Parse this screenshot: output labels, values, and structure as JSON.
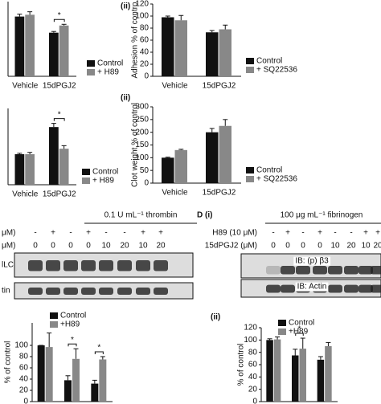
{
  "chart_data": [
    {
      "type": "bar",
      "categories": [
        "Vehicle",
        "15dPGJ2"
      ],
      "ylim": [
        0,
        125
      ],
      "yticks": [],
      "series": [
        {
          "name": "Control",
          "color": "#111111",
          "values": [
            100,
            73
          ],
          "errors": [
            4,
            2
          ]
        },
        {
          "name": "+ H89",
          "color": "#888888",
          "values": [
            103,
            85
          ],
          "errors": [
            5,
            2
          ]
        }
      ],
      "annotations": [
        "*"
      ]
    },
    {
      "type": "bar",
      "panel_label": "(ii)",
      "y_label": "Adhesion % of contro",
      "categories": [
        "Vehicle",
        "15dPGJ2"
      ],
      "ylim": [
        0,
        120
      ],
      "yticks": [
        0,
        20,
        40,
        60,
        80,
        100,
        120
      ],
      "series": [
        {
          "name": "Control",
          "color": "#111111",
          "values": [
            98,
            73
          ],
          "errors": [
            2,
            3
          ]
        },
        {
          "name": "+ SQ22536",
          "color": "#888888",
          "values": [
            93,
            78
          ],
          "errors": [
            8,
            7
          ]
        }
      ],
      "annotations": []
    },
    {
      "type": "bar",
      "categories": [
        "Vehicle",
        "15dPGJ2"
      ],
      "ylim": [
        0,
        250
      ],
      "yticks": [],
      "series": [
        {
          "name": "Control",
          "color": "#111111",
          "values": [
            100,
            189
          ],
          "errors": [
            3,
            12
          ]
        },
        {
          "name": "+ H89",
          "color": "#888888",
          "values": [
            100,
            118
          ],
          "errors": [
            6,
            10
          ]
        }
      ],
      "annotations": [
        "*"
      ]
    },
    {
      "type": "bar",
      "panel_label": "(ii)",
      "y_label": "Clot weight % of control",
      "categories": [
        "Vehicle",
        "15dPGJ2"
      ],
      "ylim": [
        0,
        300
      ],
      "yticks": [
        0,
        50,
        100,
        150,
        200,
        250,
        300
      ],
      "series": [
        {
          "name": "Control",
          "color": "#111111",
          "values": [
            100,
            200
          ],
          "errors": [
            2,
            15
          ]
        },
        {
          "name": "+ SQ22536",
          "color": "#888888",
          "values": [
            130,
            225
          ],
          "errors": [
            3,
            25
          ]
        }
      ],
      "annotations": []
    },
    {
      "type": "bar",
      "y_label": "% of control",
      "categories": [
        null,
        null,
        null
      ],
      "ylim": [
        0,
        140
      ],
      "yticks": [
        0,
        20,
        40,
        60,
        80,
        100
      ],
      "series": [
        {
          "name": "Control",
          "color": "#111111",
          "values": [
            100,
            38,
            32
          ],
          "errors": [
            0,
            8,
            6
          ]
        },
        {
          "name": "+H89",
          "color": "#888888",
          "values": [
            97,
            76,
            75
          ],
          "errors": [
            25,
            18,
            5
          ]
        }
      ],
      "annotations": [
        "*",
        "*"
      ]
    },
    {
      "type": "bar",
      "panel_label": "(ii)",
      "y_label": "% of control",
      "categories": [
        null,
        null,
        null
      ],
      "ylim": [
        0,
        120
      ],
      "yticks": [
        0,
        20,
        40,
        60,
        80,
        100,
        120
      ],
      "series": [
        {
          "name": "Control",
          "color": "#111111",
          "values": [
            100,
            75,
            68
          ],
          "errors": [
            2,
            10,
            5
          ]
        },
        {
          "name": "+H89",
          "color": "#888888",
          "values": [
            101,
            86,
            90
          ],
          "errors": [
            4,
            17,
            6
          ]
        }
      ],
      "annotations": [
        "*"
      ]
    }
  ],
  "blots": [
    {
      "header": "0.1 U mL⁻¹ thrombin",
      "rows": [
        {
          "label": "μM)",
          "cells": [
            "-",
            "+",
            "-",
            "+",
            "-",
            "-",
            "+",
            "+"
          ]
        },
        {
          "label": "μM)",
          "cells": [
            "0",
            "0",
            "0",
            "0",
            "10",
            "20",
            "10",
            "20"
          ]
        }
      ],
      "bands": [
        "lLC",
        "tin"
      ]
    },
    {
      "panel_label": "D (i)",
      "header": "100 μg mL⁻¹ fibrinogen",
      "rows": [
        {
          "label": "H89 (10 μM)",
          "cells": [
            "-",
            "+",
            "-",
            "+",
            "-",
            "-",
            "+",
            "+"
          ]
        },
        {
          "label": "15dPGJ2 (μM)",
          "cells": [
            "0",
            "0",
            "0",
            "0",
            "10",
            "20",
            "10",
            "20"
          ]
        }
      ],
      "bands": [
        "IB: (p) β3",
        "IB: Actin"
      ]
    }
  ]
}
